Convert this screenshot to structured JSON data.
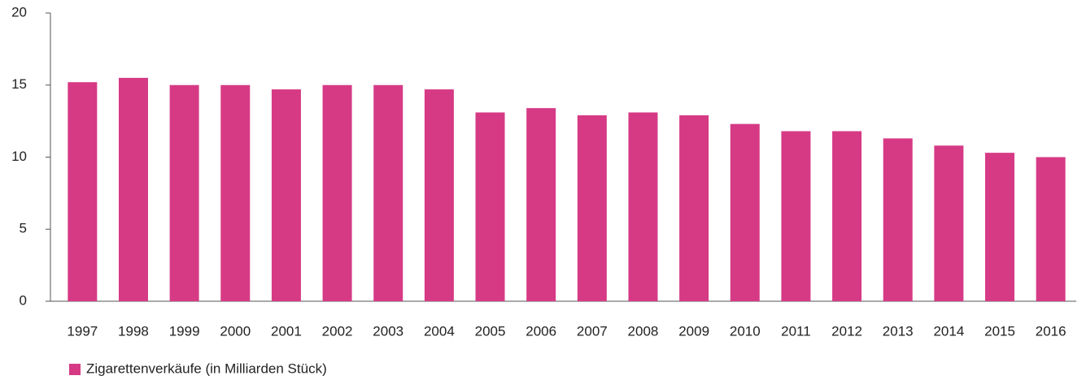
{
  "chart_data": {
    "type": "bar",
    "categories": [
      "1997",
      "1998",
      "1999",
      "2000",
      "2001",
      "2002",
      "2003",
      "2004",
      "2005",
      "2006",
      "2007",
      "2008",
      "2009",
      "2010",
      "2011",
      "2012",
      "2013",
      "2014",
      "2015",
      "2016"
    ],
    "series": [
      {
        "name": "Zigarettenverkäufe (in Milliarden Stück)",
        "color": "#d63a85",
        "values": [
          15.2,
          15.5,
          15.0,
          15.0,
          14.7,
          15.0,
          15.0,
          14.7,
          13.1,
          13.4,
          12.9,
          13.1,
          12.9,
          12.3,
          11.8,
          11.8,
          11.3,
          10.8,
          10.3,
          10.0
        ]
      }
    ],
    "ylim": [
      0,
      20
    ],
    "yticks": [
      0,
      5,
      10,
      15,
      20
    ],
    "grid": false,
    "legend": "bottom-left"
  }
}
